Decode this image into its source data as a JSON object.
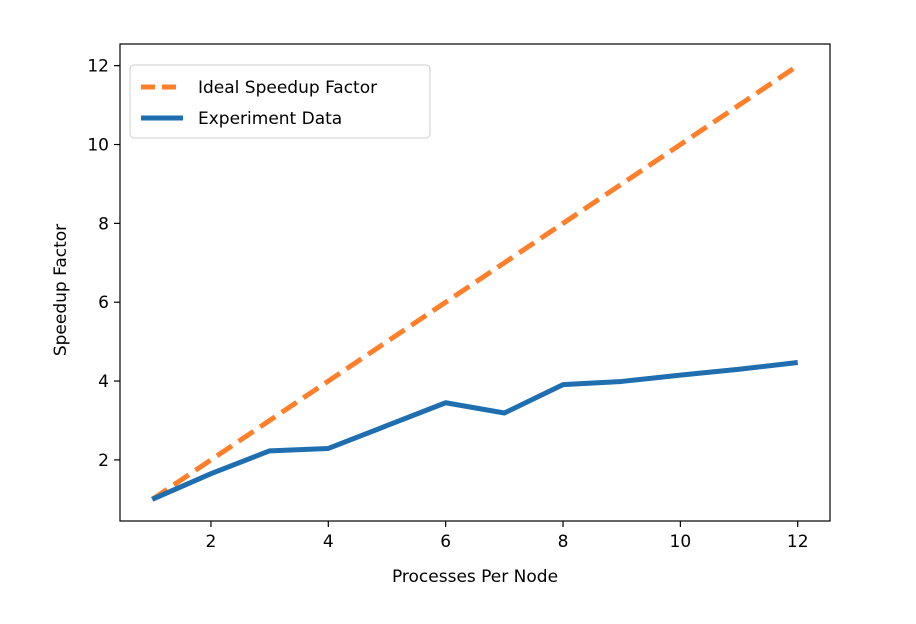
{
  "chart_data": {
    "type": "line",
    "title": "",
    "xlabel": "Processes Per Node",
    "ylabel": "Speedup Factor",
    "xlim": [
      0.45,
      12.55
    ],
    "ylim": [
      0.45,
      12.55
    ],
    "xticks": [
      2,
      4,
      6,
      8,
      10,
      12
    ],
    "yticks": [
      2,
      4,
      6,
      8,
      10,
      12
    ],
    "grid": false,
    "legend_position": "top-left",
    "series": [
      {
        "name": "Ideal Speedup Factor",
        "style": "dashed",
        "color": "#ff7f2a",
        "x": [
          1,
          2,
          3,
          4,
          5,
          6,
          7,
          8,
          9,
          10,
          11,
          12
        ],
        "y": [
          1,
          2,
          3,
          4,
          5,
          6,
          7,
          8,
          9,
          10,
          11,
          12
        ]
      },
      {
        "name": "Experiment Data",
        "style": "solid",
        "color": "#1f6fb0",
        "x": [
          1,
          2,
          3,
          4,
          5,
          6,
          7,
          8,
          9,
          10,
          11,
          12
        ],
        "y": [
          1.0,
          1.65,
          2.23,
          2.29,
          2.87,
          3.45,
          3.19,
          3.91,
          3.99,
          4.15,
          4.3,
          4.47
        ]
      }
    ]
  }
}
